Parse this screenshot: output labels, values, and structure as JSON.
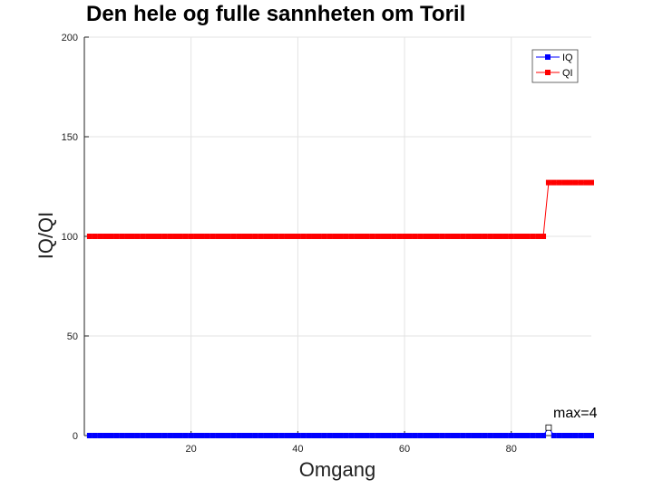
{
  "chart_data": {
    "type": "line",
    "title": "Den hele og fulle sannheten om Toril",
    "xlabel": "Omgang",
    "ylabel": "IQ/QI",
    "xlim": [
      0,
      95
    ],
    "ylim": [
      0,
      200
    ],
    "xticks": [
      "20",
      "40",
      "60",
      "80"
    ],
    "xtick_values": [
      20,
      40,
      60,
      80
    ],
    "yticks": [
      "0",
      "50",
      "100",
      "150",
      "200"
    ],
    "ytick_values": [
      0,
      50,
      100,
      150,
      200
    ],
    "grid": true,
    "legend_position": "top-right",
    "annotation": {
      "text": "max=4",
      "x": 87,
      "y": 4
    },
    "series": [
      {
        "name": "IQ",
        "color": "#0000ff",
        "x": [
          1,
          2,
          3,
          4,
          5,
          6,
          7,
          8,
          9,
          10,
          11,
          12,
          13,
          14,
          15,
          16,
          17,
          18,
          19,
          20,
          21,
          22,
          23,
          24,
          25,
          26,
          27,
          28,
          29,
          30,
          31,
          32,
          33,
          34,
          35,
          36,
          37,
          38,
          39,
          40,
          41,
          42,
          43,
          44,
          45,
          46,
          47,
          48,
          49,
          50,
          51,
          52,
          53,
          54,
          55,
          56,
          57,
          58,
          59,
          60,
          61,
          62,
          63,
          64,
          65,
          66,
          67,
          68,
          69,
          70,
          71,
          72,
          73,
          74,
          75,
          76,
          77,
          78,
          79,
          80,
          81,
          82,
          83,
          84,
          85,
          86,
          87,
          88,
          89,
          90,
          91,
          92,
          93,
          94,
          95
        ],
        "values": [
          0,
          0,
          0,
          0,
          0,
          0,
          0,
          0,
          0,
          0,
          0,
          0,
          0,
          0,
          0,
          0,
          0,
          0,
          0,
          0,
          0,
          0,
          0,
          0,
          0,
          0,
          0,
          0,
          0,
          0,
          0,
          0,
          0,
          0,
          0,
          0,
          0,
          0,
          0,
          0,
          0,
          0,
          0,
          0,
          0,
          0,
          0,
          0,
          0,
          0,
          0,
          0,
          0,
          0,
          0,
          0,
          0,
          0,
          0,
          0,
          0,
          0,
          0,
          0,
          0,
          0,
          0,
          0,
          0,
          0,
          0,
          0,
          0,
          0,
          0,
          0,
          0,
          0,
          0,
          0,
          0,
          0,
          0,
          0,
          0,
          0,
          4,
          0,
          0,
          0,
          0,
          0,
          0,
          0,
          0
        ]
      },
      {
        "name": "QI",
        "color": "#ff0000",
        "x": [
          1,
          2,
          3,
          4,
          5,
          6,
          7,
          8,
          9,
          10,
          11,
          12,
          13,
          14,
          15,
          16,
          17,
          18,
          19,
          20,
          21,
          22,
          23,
          24,
          25,
          26,
          27,
          28,
          29,
          30,
          31,
          32,
          33,
          34,
          35,
          36,
          37,
          38,
          39,
          40,
          41,
          42,
          43,
          44,
          45,
          46,
          47,
          48,
          49,
          50,
          51,
          52,
          53,
          54,
          55,
          56,
          57,
          58,
          59,
          60,
          61,
          62,
          63,
          64,
          65,
          66,
          67,
          68,
          69,
          70,
          71,
          72,
          73,
          74,
          75,
          76,
          77,
          78,
          79,
          80,
          81,
          82,
          83,
          84,
          85,
          86,
          87,
          88,
          89,
          90,
          91,
          92,
          93,
          94,
          95
        ],
        "values": [
          100,
          100,
          100,
          100,
          100,
          100,
          100,
          100,
          100,
          100,
          100,
          100,
          100,
          100,
          100,
          100,
          100,
          100,
          100,
          100,
          100,
          100,
          100,
          100,
          100,
          100,
          100,
          100,
          100,
          100,
          100,
          100,
          100,
          100,
          100,
          100,
          100,
          100,
          100,
          100,
          100,
          100,
          100,
          100,
          100,
          100,
          100,
          100,
          100,
          100,
          100,
          100,
          100,
          100,
          100,
          100,
          100,
          100,
          100,
          100,
          100,
          100,
          100,
          100,
          100,
          100,
          100,
          100,
          100,
          100,
          100,
          100,
          100,
          100,
          100,
          100,
          100,
          100,
          100,
          100,
          100,
          100,
          100,
          100,
          100,
          100,
          127,
          127,
          127,
          127,
          127,
          127,
          127,
          127,
          127
        ]
      }
    ]
  }
}
